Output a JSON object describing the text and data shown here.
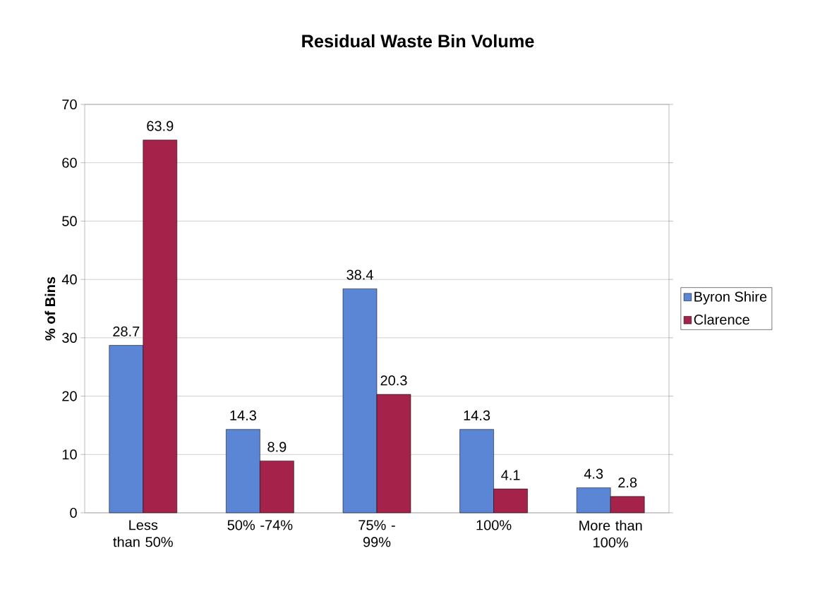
{
  "chart_data": {
    "type": "bar",
    "title": "Residual Waste Bin Volume",
    "ylabel": "% of Bins",
    "categories": [
      "Less than 50%",
      "50% -74%",
      "75% - 99%",
      "100%",
      "More than 100%"
    ],
    "series": [
      {
        "name": "Byron Shire",
        "color": "#5b86d6",
        "values": [
          28.7,
          14.3,
          38.4,
          14.3,
          4.3
        ]
      },
      {
        "name": "Clarence",
        "color": "#a5234a",
        "values": [
          63.9,
          8.9,
          20.3,
          4.1,
          2.8
        ]
      }
    ],
    "ylim": [
      0,
      70
    ],
    "yticks": [
      0,
      10,
      20,
      30,
      40,
      50,
      60,
      70
    ],
    "grid": "y",
    "legend": "right",
    "data_labels": true
  }
}
